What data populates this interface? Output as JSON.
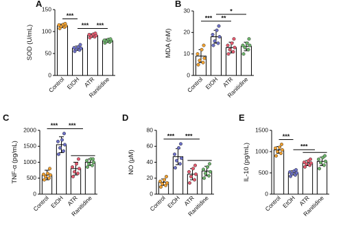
{
  "chart_data": [
    {
      "type": "bar",
      "panel": "A",
      "ylabel": "SOD (U/mL)",
      "categories": [
        "Control",
        "EtOH",
        "ATR",
        "Ranitidine"
      ],
      "colors": [
        "#f0a030",
        "#6b6fc4",
        "#e25a6e",
        "#6db36b"
      ],
      "values": [
        113,
        62,
        91,
        79
      ],
      "errors": [
        4,
        5,
        4,
        4
      ],
      "points": [
        [
          107,
          110,
          112,
          113,
          115,
          116,
          118
        ],
        [
          55,
          58,
          60,
          62,
          63,
          65,
          70
        ],
        [
          86,
          88,
          90,
          91,
          93,
          94,
          96
        ],
        [
          74,
          76,
          78,
          79,
          80,
          82,
          83
        ]
      ],
      "ylim": [
        0,
        150
      ],
      "yticks": [
        0,
        50,
        100,
        150
      ],
      "comparisons": [
        {
          "from": 0,
          "to": 1,
          "label": "***"
        },
        {
          "from": 1,
          "to": 2,
          "label": "***"
        },
        {
          "from": 2,
          "to": 3,
          "label": "***"
        }
      ]
    },
    {
      "type": "bar",
      "panel": "B",
      "ylabel": "MDA (nM)",
      "categories": [
        "Control",
        "EtOH",
        "ATR",
        "Ranitidine"
      ],
      "colors": [
        "#f0a030",
        "#6b6fc4",
        "#e25a6e",
        "#6db36b"
      ],
      "values": [
        9,
        18,
        13,
        13.5
      ],
      "errors": [
        3,
        3,
        2.5,
        2
      ],
      "points": [
        [
          5,
          6,
          7,
          8,
          10,
          12,
          14
        ],
        [
          14,
          15,
          16,
          18,
          19,
          21,
          23
        ],
        [
          10,
          11,
          12,
          13,
          14,
          15,
          17
        ],
        [
          10,
          12,
          13,
          14,
          14,
          15,
          17
        ]
      ],
      "ylim": [
        0,
        30
      ],
      "yticks": [
        0,
        10,
        20,
        30
      ],
      "comparisons": [
        {
          "from": 0,
          "to": 1,
          "label": "***"
        },
        {
          "from": 1,
          "to": 2,
          "label": "**"
        },
        {
          "from": 1,
          "to": 3,
          "label": "*"
        }
      ]
    },
    {
      "type": "bar",
      "panel": "C",
      "ylabel": "TNF-α (pg/mL)",
      "categories": [
        "Control",
        "EtOH",
        "ATR",
        "Ranitidine"
      ],
      "colors": [
        "#f0a030",
        "#6b6fc4",
        "#e25a6e",
        "#6db36b"
      ],
      "values": [
        600,
        1550,
        800,
        1000
      ],
      "errors": [
        150,
        250,
        200,
        100
      ],
      "points": [
        [
          450,
          500,
          550,
          600,
          620,
          650,
          800
        ],
        [
          1250,
          1350,
          1450,
          1550,
          1650,
          1700,
          1900
        ],
        [
          550,
          650,
          700,
          800,
          850,
          950,
          1100
        ],
        [
          850,
          900,
          950,
          1000,
          1050,
          1100,
          1100
        ]
      ],
      "ylim": [
        0,
        2000
      ],
      "yticks": [
        0,
        500,
        1000,
        1500,
        2000
      ],
      "comparisons": [
        {
          "from": 0,
          "to": 1,
          "label": "***"
        },
        {
          "from": 1,
          "to": [
            2,
            3
          ],
          "label": "***"
        }
      ]
    },
    {
      "type": "bar",
      "panel": "D",
      "ylabel": "NO (μM)",
      "categories": [
        "Control",
        "EtOH",
        "ATR",
        "Ranitidine"
      ],
      "colors": [
        "#f0a030",
        "#6b6fc4",
        "#e25a6e",
        "#6db36b"
      ],
      "values": [
        15,
        47,
        25,
        29
      ],
      "errors": [
        4,
        10,
        7,
        6
      ],
      "points": [
        [
          9,
          11,
          13,
          14,
          16,
          18,
          22
        ],
        [
          33,
          38,
          42,
          45,
          50,
          58,
          63
        ],
        [
          14,
          18,
          22,
          25,
          28,
          32,
          36
        ],
        [
          20,
          23,
          26,
          28,
          31,
          34,
          38
        ]
      ],
      "ylim": [
        0,
        80
      ],
      "yticks": [
        0,
        20,
        40,
        60,
        80
      ],
      "comparisons": [
        {
          "from": 0,
          "to": 1,
          "label": "***"
        },
        {
          "from": 1,
          "to": [
            2,
            3
          ],
          "label": "***"
        }
      ]
    },
    {
      "type": "bar",
      "panel": "E",
      "ylabel": "IL-10 (pg/mL)",
      "categories": [
        "Control",
        "EtOH",
        "ATR",
        "Ranitidine"
      ],
      "colors": [
        "#f0a030",
        "#6b6fc4",
        "#e25a6e",
        "#6db36b"
      ],
      "values": [
        1040,
        500,
        730,
        770
      ],
      "errors": [
        80,
        50,
        60,
        100
      ],
      "points": [
        [
          900,
          960,
          1000,
          1040,
          1080,
          1100,
          1170
        ],
        [
          420,
          450,
          480,
          500,
          520,
          540,
          570
        ],
        [
          640,
          680,
          710,
          730,
          750,
          780,
          820
        ],
        [
          600,
          680,
          740,
          770,
          820,
          860,
          900
        ]
      ],
      "ylim": [
        0,
        1500
      ],
      "yticks": [
        0,
        500,
        1000,
        1500
      ],
      "comparisons": [
        {
          "from": 0,
          "to": 1,
          "label": "***"
        },
        {
          "from": 1,
          "to": [
            2,
            3
          ],
          "label": "***"
        }
      ]
    }
  ]
}
